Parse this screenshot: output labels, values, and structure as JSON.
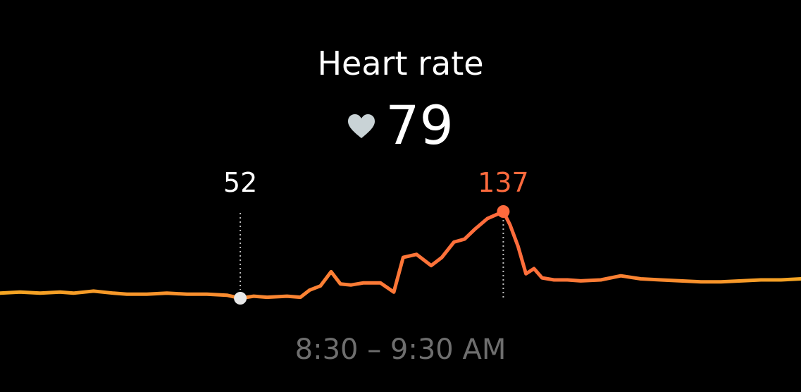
{
  "title": "Heart rate",
  "current": {
    "icon": "heart-icon",
    "value": "79"
  },
  "time_range": "8:30 – 9:30 AM",
  "colors": {
    "background": "#000000",
    "line_start": "#f5a623",
    "line_end": "#ff6a3d",
    "min_marker": "#e8e8e8",
    "max_marker": "#ff6a3d",
    "heart_icon": "#c9d3d6",
    "time_text": "#6e6e6e"
  },
  "chart_data": {
    "type": "line",
    "x_unit": "minutes after 8:30 AM",
    "xlim": [
      0,
      60
    ],
    "ylim": [
      40,
      150
    ],
    "min": {
      "x": 18,
      "value": 52,
      "label": "52"
    },
    "max": {
      "x": 37.7,
      "value": 137,
      "label": "137"
    },
    "series": [
      {
        "x": [
          0,
          1.5,
          3,
          4.5,
          5.5,
          7,
          8.5,
          9.5,
          11,
          12.5,
          14,
          15.5,
          17,
          18,
          19,
          20,
          21.5,
          22.5,
          23.2,
          24,
          24.8,
          25.5,
          26.3,
          27.2,
          28.5,
          29.5,
          30.2,
          31.2,
          32.3,
          33.1,
          34,
          34.8,
          35.6,
          36.5,
          37.2,
          37.7,
          38.2,
          38.8,
          39.4,
          40,
          40.6,
          41.5,
          42.5,
          43.5,
          45,
          46.5,
          48,
          49.5,
          51,
          52.5,
          54,
          55.5,
          57,
          58.5,
          60
        ],
        "values": [
          57,
          58,
          57,
          58,
          57,
          59,
          57,
          56,
          56,
          57,
          56,
          56,
          55,
          52,
          54,
          53,
          54,
          53,
          60,
          64,
          78,
          66,
          65,
          67,
          67,
          58,
          92,
          95,
          84,
          92,
          107,
          110,
          120,
          130,
          134,
          137,
          124,
          103,
          76,
          81,
          72,
          70,
          70,
          69,
          70,
          74,
          71,
          70,
          69,
          68,
          68,
          69,
          70,
          70,
          71
        ]
      }
    ]
  }
}
